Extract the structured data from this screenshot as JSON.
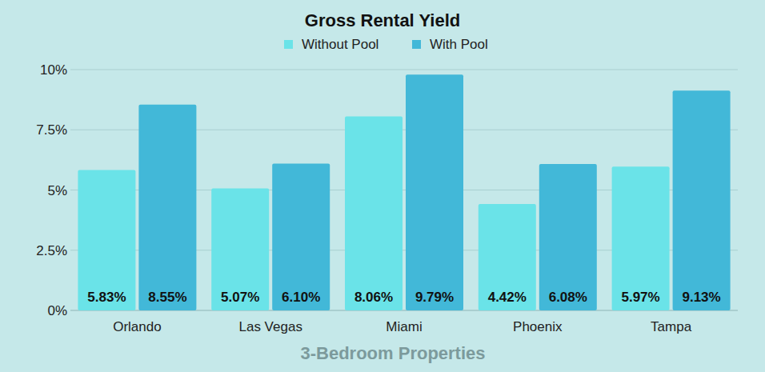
{
  "chart_data": {
    "type": "bar",
    "title": "Gross Rental Yield",
    "x_label": "3-Bedroom Properties",
    "categories": [
      "Orlando",
      "Las Vegas",
      "Miami",
      "Phoenix",
      "Tampa"
    ],
    "series": [
      {
        "name": "Without Pool",
        "color": "#6ae3e8",
        "values": [
          5.83,
          5.07,
          8.06,
          4.42,
          5.97
        ],
        "value_labels": [
          "5.83%",
          "5.07%",
          "8.06%",
          "4.42%",
          "5.97%"
        ]
      },
      {
        "name": "With Pool",
        "color": "#42b8d8",
        "values": [
          8.55,
          6.1,
          9.79,
          6.08,
          9.13
        ],
        "value_labels": [
          "8.55%",
          "6.10%",
          "9.79%",
          "6.08%",
          "9.13%"
        ]
      }
    ],
    "ylim": [
      0,
      10
    ],
    "yticks": [
      {
        "value": 0,
        "label": "0%"
      },
      {
        "value": 2.5,
        "label": "2.5%"
      },
      {
        "value": 5,
        "label": "5%"
      },
      {
        "value": 7.5,
        "label": "7.5%"
      },
      {
        "value": 10,
        "label": "10%"
      }
    ],
    "grid": true,
    "legend": "top",
    "data_labels": true
  }
}
